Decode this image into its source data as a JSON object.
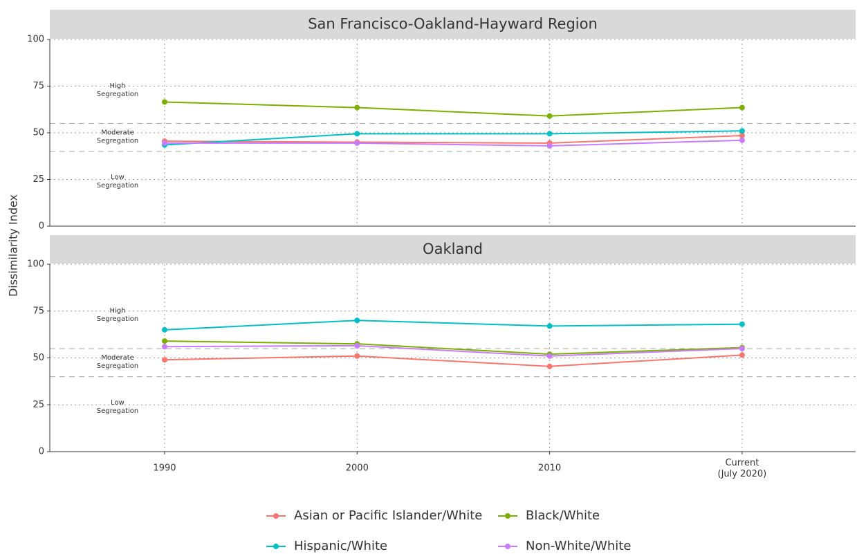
{
  "chart_data": [
    {
      "type": "line",
      "title": "San Francisco-Oakland-Hayward Region",
      "y_label": "Dissimilarity Index",
      "categories": [
        "1990",
        "2000",
        "2010",
        "Current\n(July 2020)"
      ],
      "ylim": [
        0,
        100
      ],
      "yticks": [
        0,
        25,
        50,
        75,
        100
      ],
      "grid": true,
      "hlines": [
        40,
        55
      ],
      "annotations": [
        {
          "text": "High\nSegregation",
          "y": 73
        },
        {
          "text": "Moderate\nSegregation",
          "y": 48
        },
        {
          "text": "Low\nSegregation",
          "y": 24
        }
      ],
      "series": [
        {
          "name": "Asian or Pacific Islander/White",
          "color": "#F8766D",
          "values": [
            45.5,
            45,
            44.5,
            48.5
          ]
        },
        {
          "name": "Black/White",
          "color": "#7CAE00",
          "values": [
            66.5,
            63.5,
            59,
            63.5
          ]
        },
        {
          "name": "Hispanic/White",
          "color": "#00BFC4",
          "values": [
            43.5,
            49.5,
            49.5,
            51
          ]
        },
        {
          "name": "Non-White/White",
          "color": "#C77CFF",
          "values": [
            44.5,
            44.5,
            43,
            46
          ]
        }
      ]
    },
    {
      "type": "line",
      "title": "Oakland",
      "categories": [
        "1990",
        "2000",
        "2010",
        "Current\n(July 2020)"
      ],
      "ylim": [
        0,
        100
      ],
      "yticks": [
        0,
        25,
        50,
        75,
        100
      ],
      "grid": true,
      "hlines": [
        40,
        55
      ],
      "annotations": [
        {
          "text": "High\nSegregation",
          "y": 73
        },
        {
          "text": "Moderate\nSegregation",
          "y": 48
        },
        {
          "text": "Low\nSegregation",
          "y": 24
        }
      ],
      "series": [
        {
          "name": "Asian or Pacific Islander/White",
          "color": "#F8766D",
          "values": [
            49,
            51,
            45.5,
            51.5
          ]
        },
        {
          "name": "Black/White",
          "color": "#7CAE00",
          "values": [
            59,
            57.5,
            52,
            55.5
          ]
        },
        {
          "name": "Hispanic/White",
          "color": "#00BFC4",
          "values": [
            65,
            70,
            67,
            68
          ]
        },
        {
          "name": "Non-White/White",
          "color": "#C77CFF",
          "values": [
            56,
            56.5,
            51,
            55
          ]
        }
      ]
    }
  ]
}
